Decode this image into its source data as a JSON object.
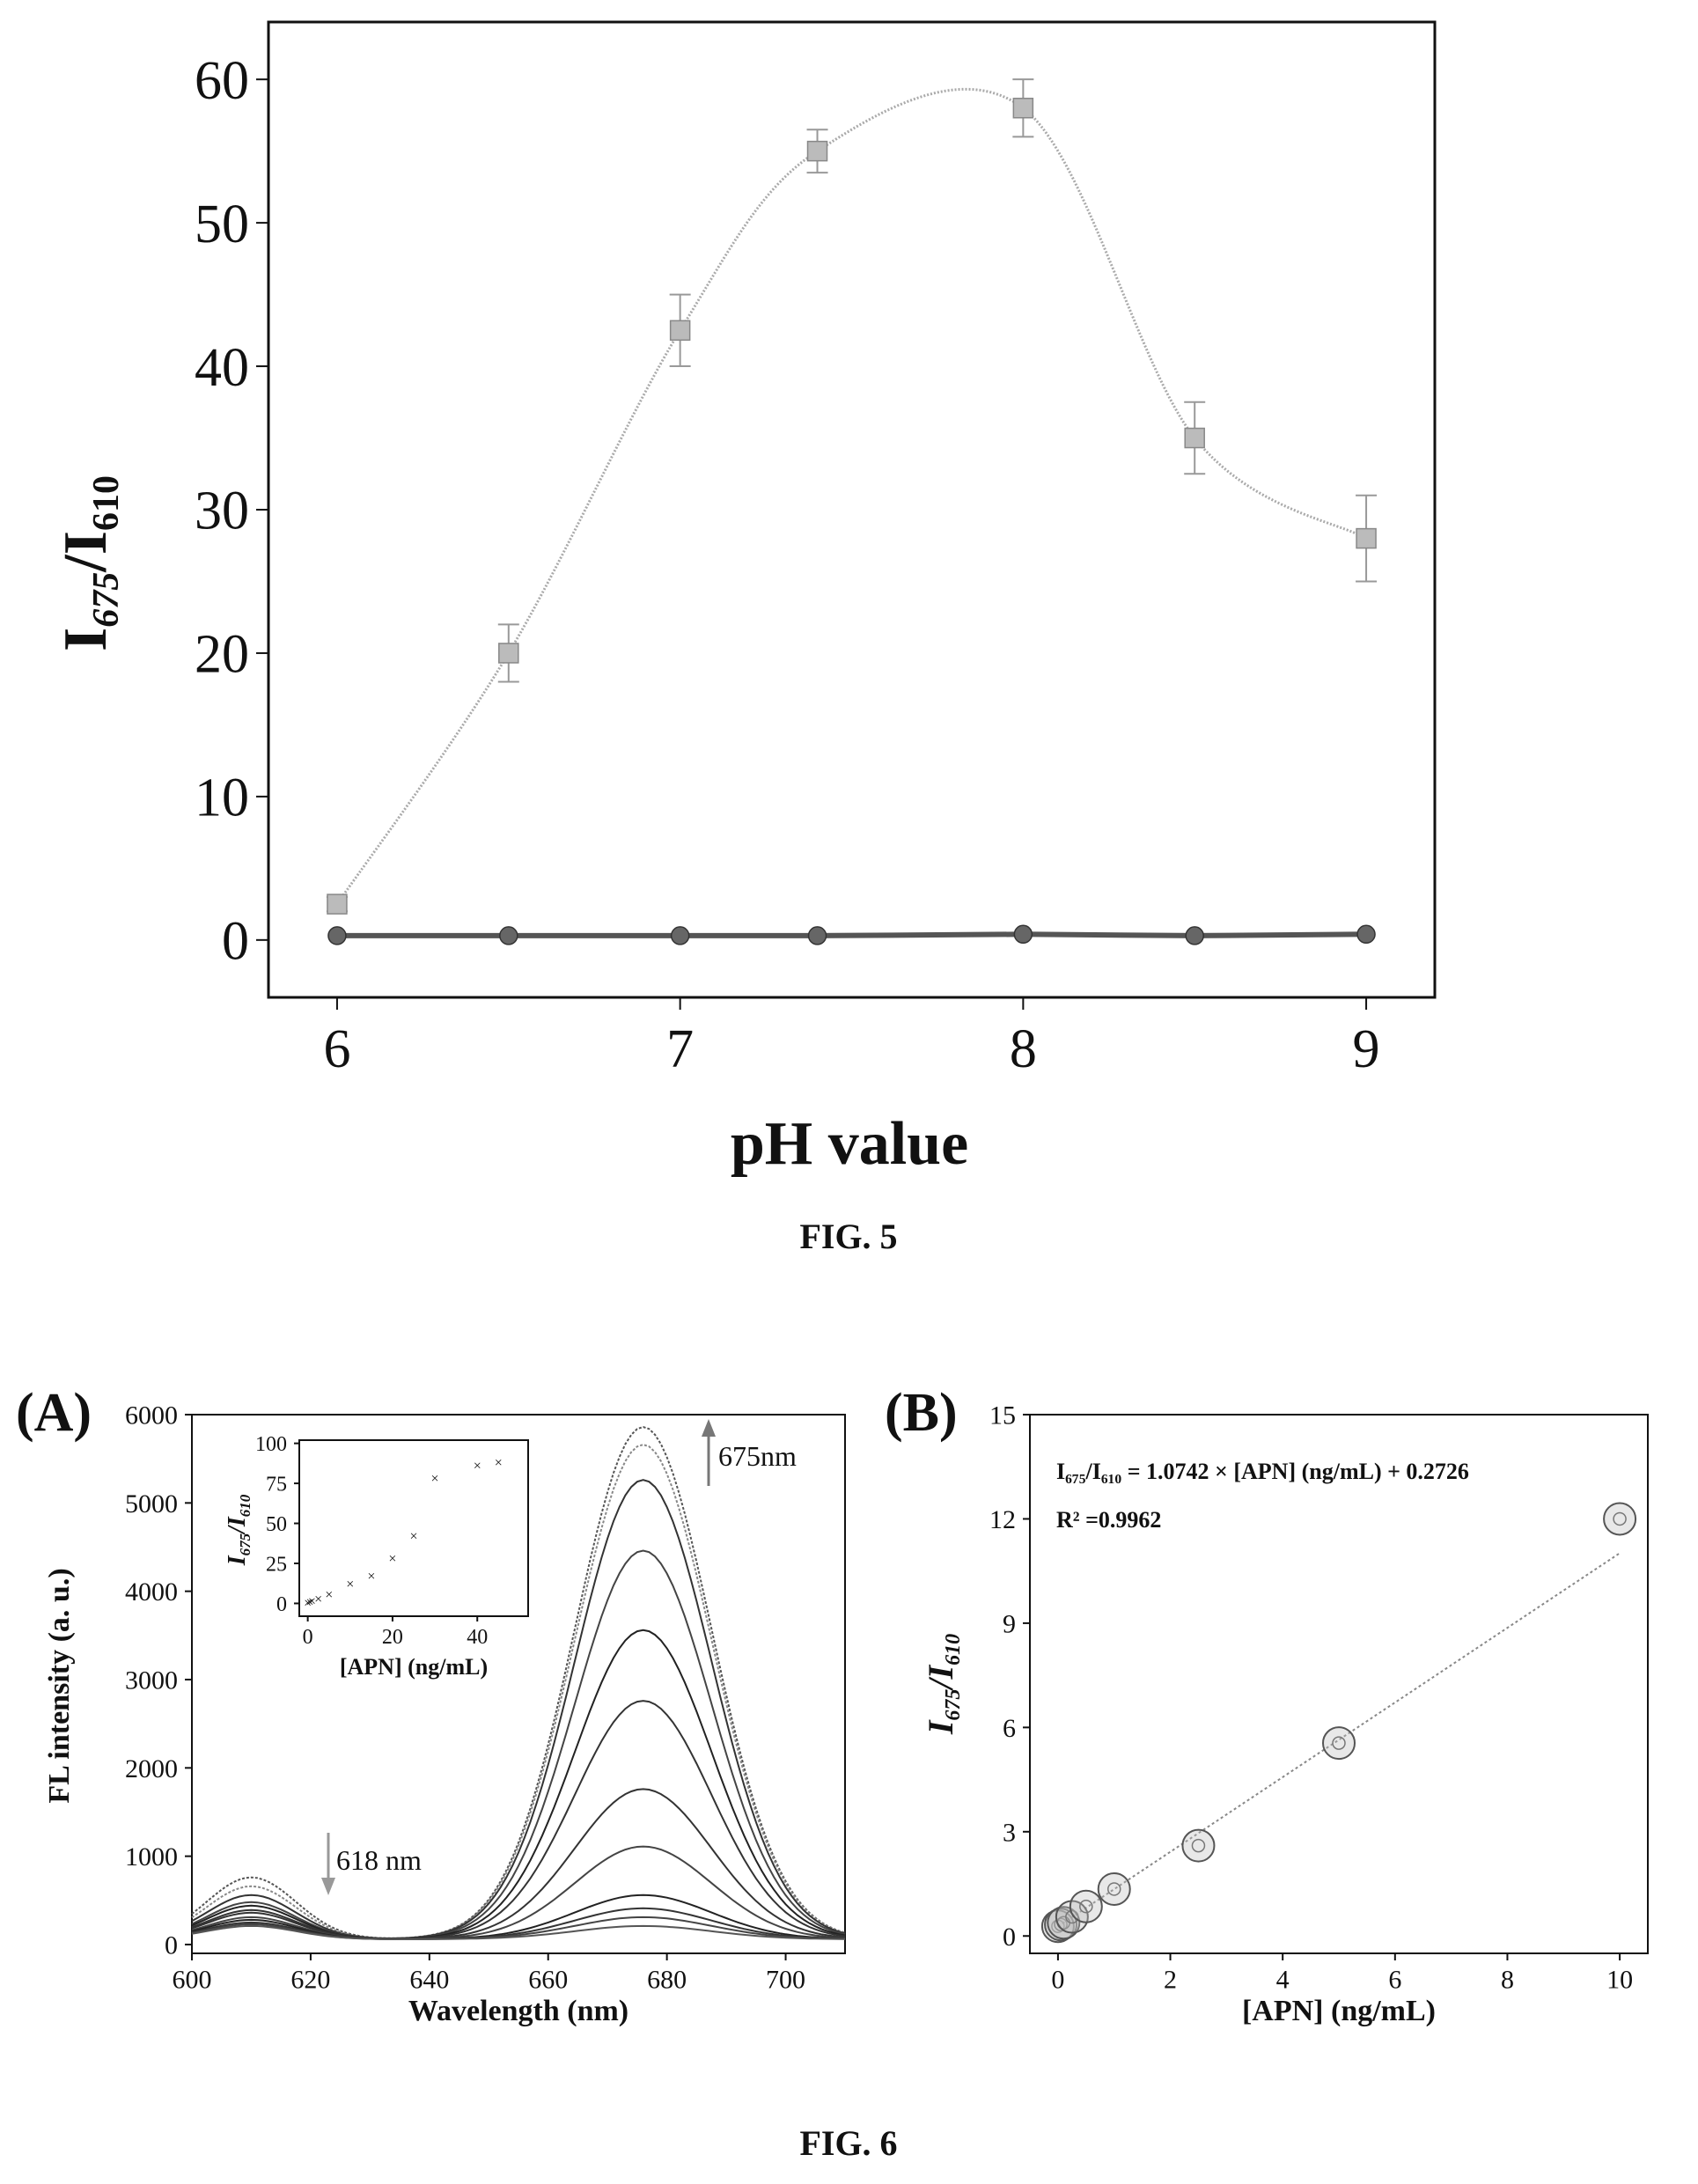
{
  "fig5": {
    "caption": "FIG. 5",
    "chart_data": {
      "type": "line",
      "xlabel": "pH value",
      "ylabel_main": "I",
      "ylabel_sub1": "675",
      "ylabel_sub2": "610",
      "xlim": [
        5.8,
        9.2
      ],
      "ylim": [
        -4,
        64
      ],
      "xticks": [
        6,
        7,
        8,
        9
      ],
      "yticks": [
        0,
        10,
        20,
        30,
        40,
        50,
        60
      ],
      "series": [
        {
          "x": [
            6,
            6.5,
            7,
            7.4,
            8,
            8.5,
            9
          ],
          "y": [
            2.5,
            20,
            42.5,
            55,
            58,
            35,
            28
          ],
          "err": [
            0.5,
            2.0,
            2.5,
            1.5,
            2.0,
            2.5,
            3.0
          ]
        },
        {
          "x": [
            6,
            6.5,
            7,
            7.4,
            8,
            8.5,
            9
          ],
          "y": [
            0.3,
            0.3,
            0.3,
            0.3,
            0.4,
            0.3,
            0.4
          ]
        }
      ]
    }
  },
  "fig6": {
    "caption": "FIG. 6",
    "panel_a": {
      "label": "(A)",
      "chart_data": {
        "type": "line",
        "xlabel": "Wavelength (nm)",
        "ylabel": "FL intensity (a. u.)",
        "xlim": [
          600,
          710
        ],
        "ylim": [
          -100,
          6000
        ],
        "xticks": [
          600,
          620,
          640,
          660,
          680,
          700
        ],
        "yticks": [
          0,
          1000,
          2000,
          3000,
          4000,
          5000,
          6000
        ],
        "peak_675": [
          5800,
          5600,
          5200,
          4400,
          3500,
          2700,
          1700,
          1050,
          500,
          350,
          250,
          150
        ],
        "peak_610": [
          700,
          600,
          500,
          420,
          380,
          330,
          300,
          250,
          220,
          190,
          170,
          150
        ],
        "annotation_up": "675nm",
        "annotation_down": "618 nm"
      },
      "inset": {
        "chart_data": {
          "type": "scatter",
          "xlabel": "[APN] (ng/mL)",
          "ylabel_main": "I",
          "ylabel_sub1": "675",
          "ylabel_sub2": "610",
          "xlim": [
            -2,
            52
          ],
          "ylim": [
            -8,
            102
          ],
          "xticks": [
            0,
            20,
            40
          ],
          "yticks": [
            0,
            25,
            50,
            75,
            100
          ],
          "x": [
            0,
            0.5,
            1,
            2.5,
            5,
            10,
            15,
            20,
            25,
            30,
            40,
            45
          ],
          "y": [
            0.3,
            0.8,
            1.3,
            2.7,
            5.6,
            12,
            17,
            28,
            42,
            78,
            86,
            88
          ]
        }
      }
    },
    "panel_b": {
      "label": "(B)",
      "chart_data": {
        "type": "scatter",
        "xlabel": "[APN] (ng/mL)",
        "ylabel_main": "I",
        "ylabel_sub1": "675",
        "ylabel_sub2": "610",
        "xlim": [
          -0.5,
          10.5
        ],
        "ylim": [
          -0.5,
          15
        ],
        "xticks": [
          0,
          2,
          4,
          6,
          8,
          10
        ],
        "yticks": [
          0,
          3,
          6,
          9,
          12,
          15
        ],
        "x": [
          0,
          0.05,
          0.1,
          0.25,
          0.5,
          1,
          2.5,
          5,
          10
        ],
        "y": [
          0.28,
          0.33,
          0.38,
          0.55,
          0.85,
          1.35,
          2.6,
          5.55,
          12.0
        ],
        "fit": {
          "slope": 1.0742,
          "intercept": 0.2726
        },
        "equation": "I₆₇₅/I₆₁₀ = 1.0742 × [APN] (ng/mL) + 0.2726",
        "r2": "R² =0.9962"
      }
    }
  }
}
